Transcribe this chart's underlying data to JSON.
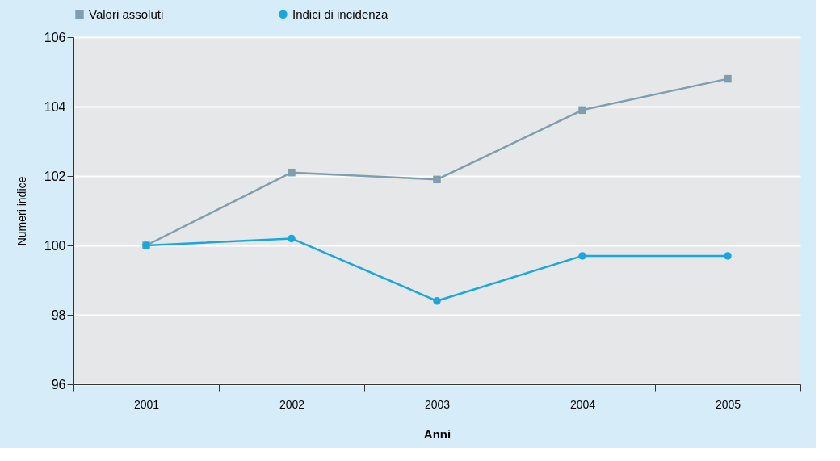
{
  "chart_data": {
    "type": "line",
    "xlabel": "Anni",
    "ylabel": "Numeri indice",
    "categories": [
      "2001",
      "2002",
      "2003",
      "2004",
      "2005"
    ],
    "series": [
      {
        "name": "Valori assoluti",
        "color": "#7f9fb0",
        "marker": "square",
        "values": [
          100,
          102.1,
          101.9,
          103.9,
          104.8
        ]
      },
      {
        "name": "Indici di incidenza",
        "color": "#1aa7e0",
        "marker": "circle",
        "values": [
          100,
          100.2,
          98.4,
          99.7,
          99.7
        ]
      }
    ],
    "ylim": [
      96,
      106
    ],
    "yticks": [
      96,
      98,
      100,
      102,
      104,
      106
    ],
    "grid": "y",
    "legend": "top",
    "line_style": "solid"
  }
}
